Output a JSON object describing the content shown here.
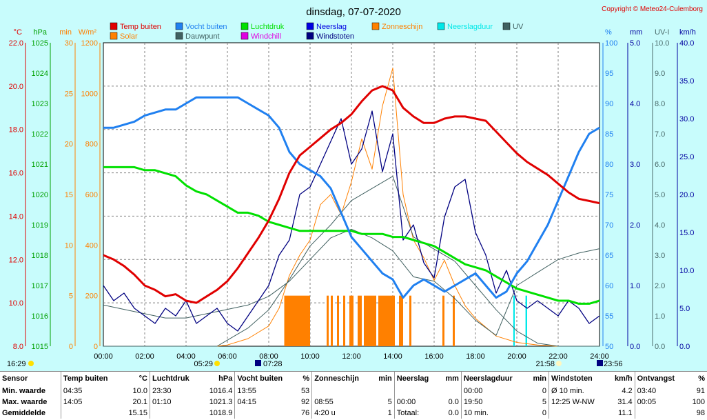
{
  "chart_data": {
    "type": "line",
    "title": "dinsdag, 07-07-2020",
    "copyright": "Copyright © Meteo24-Culemborg",
    "x_ticks": [
      "00:00",
      "02:00",
      "04:00",
      "06:00",
      "08:00",
      "10:00",
      "12:00",
      "14:00",
      "16:00",
      "18:00",
      "20:00",
      "22:00",
      "24:00"
    ],
    "left_axes": [
      {
        "unit": "°C",
        "color": "#e00000",
        "ticks": [
          "22.0",
          "20.0",
          "18.0",
          "16.0",
          "14.0",
          "12.0",
          "10.0",
          "8.0"
        ]
      },
      {
        "unit": "hPa",
        "color": "#00a000",
        "ticks": [
          "1025",
          "1024",
          "1023",
          "1022",
          "1021",
          "1020",
          "1019",
          "1018",
          "1017",
          "1016",
          "1015"
        ]
      },
      {
        "unit": "min",
        "color": "#ff8000",
        "ticks": [
          "30",
          "25",
          "20",
          "15",
          "10",
          "5",
          "0"
        ]
      },
      {
        "unit": "W/m²",
        "color": "#ff8000",
        "ticks": [
          "1200",
          "1000",
          "800",
          "600",
          "400",
          "200",
          "0"
        ]
      }
    ],
    "right_axes": [
      {
        "unit": "%",
        "color": "#2080f0",
        "ticks": [
          "100",
          "95",
          "90",
          "85",
          "80",
          "75",
          "70",
          "65",
          "60",
          "55",
          "50"
        ]
      },
      {
        "unit": "mm",
        "color": "#0000a0",
        "ticks": [
          "5.0",
          "4.0",
          "3.0",
          "2.0",
          "1.0",
          "0.0"
        ]
      },
      {
        "unit": "UV-I",
        "color": "#4a6a6a",
        "ticks": [
          "10.0",
          "9.0",
          "8.0",
          "7.0",
          "6.0",
          "5.0",
          "4.0",
          "3.0",
          "2.0",
          "1.0",
          "0.0"
        ]
      },
      {
        "unit": "km/h",
        "color": "#0000a0",
        "ticks": [
          "40.0",
          "35.0",
          "30.0",
          "25.0",
          "20.0",
          "15.0",
          "10.0",
          "5.0",
          "0.0"
        ]
      }
    ],
    "legend": [
      {
        "name": "Temp buiten",
        "color": "#e00000"
      },
      {
        "name": "Vocht buiten",
        "color": "#2080f0"
      },
      {
        "name": "Luchtdruk",
        "color": "#00e000"
      },
      {
        "name": "Neerslag",
        "color": "#0000e0"
      },
      {
        "name": "Zonneschijn",
        "color": "#ff8000"
      },
      {
        "name": "Neerslagduur",
        "color": "#00e8e8"
      },
      {
        "name": "UV",
        "color": "#406060"
      },
      {
        "name": "Solar",
        "color": "#ff8000"
      },
      {
        "name": "Dauwpunt",
        "color": "#406060"
      },
      {
        "name": "Windchill",
        "color": "#e000e0"
      },
      {
        "name": "Windstoten",
        "color": "#000080"
      }
    ],
    "sun_labels": {
      "left": "16:29",
      "sunrise": "05:29",
      "civil_dawn": "07:28",
      "sunset": "21:58",
      "civil_dusk": "23:56"
    },
    "series": [
      {
        "name": "Temp buiten",
        "unit": "°C",
        "color": "#e00000",
        "x": [
          0,
          0.5,
          1,
          1.5,
          2,
          2.5,
          3,
          3.5,
          4,
          4.5,
          5,
          5.5,
          6,
          6.5,
          7,
          7.5,
          8,
          8.5,
          9,
          9.5,
          10,
          10.5,
          11,
          11.5,
          12,
          12.5,
          13,
          13.5,
          14,
          14.5,
          15,
          15.5,
          16,
          16.5,
          17,
          17.5,
          18,
          18.5,
          19,
          19.5,
          20,
          20.5,
          21,
          21.5,
          22,
          22.5,
          23,
          23.5,
          24
        ],
        "values": [
          12.2,
          12.0,
          11.7,
          11.3,
          10.8,
          10.6,
          10.3,
          10.4,
          10.1,
          10.0,
          10.3,
          10.6,
          11.0,
          11.6,
          12.3,
          13.0,
          13.8,
          14.8,
          16.0,
          16.8,
          17.2,
          17.6,
          18.0,
          18.3,
          18.7,
          19.3,
          19.8,
          20.0,
          19.8,
          19.0,
          18.6,
          18.3,
          18.3,
          18.5,
          18.6,
          18.6,
          18.5,
          18.4,
          17.9,
          17.4,
          16.9,
          16.5,
          16.2,
          15.9,
          15.5,
          15.1,
          14.8,
          14.7,
          14.6
        ]
      },
      {
        "name": "Vocht buiten",
        "unit": "%",
        "color": "#2080f0",
        "x": [
          0,
          0.5,
          1,
          1.5,
          2,
          2.5,
          3,
          3.5,
          4,
          4.5,
          5,
          5.5,
          6,
          6.5,
          7,
          7.5,
          8,
          8.5,
          9,
          9.5,
          10,
          10.5,
          11,
          11.5,
          12,
          12.5,
          13,
          13.5,
          14,
          14.5,
          15,
          15.5,
          16,
          16.5,
          17,
          17.5,
          18,
          18.5,
          19,
          19.5,
          20,
          20.5,
          21,
          21.5,
          22,
          22.5,
          23,
          23.5,
          24
        ],
        "values": [
          86,
          86,
          86.5,
          87,
          88,
          88.5,
          89,
          89,
          90,
          91,
          91,
          91,
          91,
          91,
          90,
          89,
          88,
          86,
          82,
          80,
          79,
          78,
          76,
          72,
          68,
          66,
          64,
          62,
          61,
          58,
          60,
          61,
          60,
          59,
          60,
          61,
          62,
          60,
          58,
          59,
          62,
          64,
          67,
          70,
          74,
          78,
          82,
          85,
          86
        ]
      },
      {
        "name": "Luchtdruk",
        "unit": "hPa",
        "color": "#00e000",
        "x": [
          0,
          0.5,
          1,
          1.5,
          2,
          2.5,
          3,
          3.5,
          4,
          4.5,
          5,
          5.5,
          6,
          6.5,
          7,
          7.5,
          8,
          8.5,
          9,
          9.5,
          10,
          10.5,
          11,
          11.5,
          12,
          12.5,
          13,
          13.5,
          14,
          14.5,
          15,
          15.5,
          16,
          16.5,
          17,
          17.5,
          18,
          18.5,
          19,
          19.5,
          20,
          20.5,
          21,
          21.5,
          22,
          22.5,
          23,
          23.5,
          24
        ],
        "values": [
          1020.9,
          1020.9,
          1020.9,
          1020.9,
          1020.8,
          1020.8,
          1020.7,
          1020.6,
          1020.3,
          1020.1,
          1020.0,
          1019.8,
          1019.6,
          1019.4,
          1019.4,
          1019.3,
          1019.1,
          1019.0,
          1018.9,
          1018.8,
          1018.8,
          1018.8,
          1018.8,
          1018.8,
          1018.8,
          1018.7,
          1018.7,
          1018.7,
          1018.6,
          1018.6,
          1018.5,
          1018.4,
          1018.3,
          1018.1,
          1017.9,
          1017.7,
          1017.6,
          1017.5,
          1017.3,
          1017.1,
          1016.9,
          1016.8,
          1016.7,
          1016.6,
          1016.5,
          1016.5,
          1016.4,
          1016.4,
          1016.5
        ]
      },
      {
        "name": "Dauwpunt",
        "unit": "°C",
        "color": "#406060",
        "x": [
          0,
          1,
          2,
          3,
          4,
          5,
          6,
          7,
          8,
          9,
          10,
          11,
          12,
          13,
          14,
          15,
          16,
          17,
          18,
          19,
          20,
          21,
          22,
          23,
          24
        ],
        "values": [
          9.9,
          9.7,
          9.5,
          9.3,
          9.3,
          9.5,
          9.7,
          9.9,
          10.3,
          11.0,
          12.0,
          13.0,
          13.4,
          13.0,
          12.4,
          11.2,
          11.0,
          10.2,
          9.2,
          8.5,
          10.8,
          11.4,
          12.0,
          12.3,
          12.5
        ]
      },
      {
        "name": "Solar",
        "unit": "W/m²",
        "color": "#ff8000",
        "x": [
          0,
          5.5,
          6,
          7,
          8,
          8.5,
          9,
          9.5,
          10,
          10.5,
          11,
          11.5,
          12,
          12.5,
          13,
          13.5,
          14,
          14.5,
          15,
          15.5,
          16,
          16.5,
          17,
          17.5,
          18,
          19,
          20,
          21,
          21.9,
          24
        ],
        "values": [
          0,
          0,
          5,
          30,
          80,
          150,
          280,
          360,
          420,
          560,
          600,
          520,
          650,
          820,
          700,
          950,
          1100,
          600,
          420,
          350,
          260,
          340,
          240,
          160,
          110,
          40,
          15,
          5,
          0,
          0
        ]
      },
      {
        "name": "Windstoten",
        "unit": "km/h",
        "color": "#000080",
        "x": [
          0,
          0.5,
          1,
          1.5,
          2,
          2.5,
          3,
          3.5,
          4,
          4.5,
          5,
          5.5,
          6,
          6.5,
          7,
          7.5,
          8,
          8.5,
          9,
          9.5,
          10,
          10.5,
          11,
          11.5,
          12,
          12.5,
          13,
          13.5,
          14,
          14.5,
          15,
          15.5,
          16,
          16.5,
          17,
          17.5,
          18,
          18.5,
          19,
          19.5,
          20,
          20.5,
          21,
          21.5,
          22,
          22.5,
          23,
          23.5,
          24
        ],
        "values": [
          8,
          6,
          7,
          5,
          4,
          3,
          5,
          4,
          6,
          3,
          4,
          5,
          3,
          2,
          4,
          6,
          8,
          12,
          14,
          20,
          21,
          24,
          27,
          30,
          24,
          26,
          31,
          23,
          28,
          14,
          16,
          11,
          9,
          17,
          21,
          22,
          15,
          12,
          7,
          10,
          6,
          5,
          6,
          5,
          4,
          6,
          5,
          3,
          4
        ]
      },
      {
        "name": "UV",
        "unit": "UV-I",
        "color": "#406060",
        "x": [
          0,
          5.5,
          6,
          7,
          8,
          9,
          10,
          11,
          12,
          13,
          14,
          15,
          16,
          17,
          18,
          19,
          20,
          21,
          22,
          23,
          24
        ],
        "values": [
          0,
          0,
          0.2,
          0.6,
          1.2,
          2.2,
          3.3,
          4.0,
          4.8,
          5.2,
          5.6,
          3.6,
          3.2,
          2.8,
          2.0,
          1.2,
          0.5,
          0.1,
          0,
          0,
          0
        ]
      }
    ],
    "zonneschijn_bars": {
      "unit": "min",
      "color": "#ff8000",
      "intervals": [
        [
          8.75,
          9.1
        ],
        [
          9.1,
          10.0
        ],
        [
          10.8,
          10.9
        ],
        [
          11.0,
          11.1
        ],
        [
          11.3,
          11.4
        ],
        [
          11.6,
          11.7
        ],
        [
          11.9,
          12.1
        ],
        [
          12.3,
          12.5
        ],
        [
          12.6,
          13.2
        ],
        [
          13.3,
          14.1
        ],
        [
          14.3,
          14.5
        ],
        [
          14.8,
          14.9
        ],
        [
          16.4,
          16.5
        ],
        [
          16.9,
          17.0
        ]
      ]
    },
    "neerslagduur_bars": {
      "unit": "min",
      "color": "#00e8e8",
      "intervals": [
        [
          19.83,
          19.9
        ],
        [
          20.42,
          20.5
        ]
      ]
    }
  },
  "stats": {
    "headers": [
      {
        "name": "Sensor",
        "unit": ""
      },
      {
        "name": "Temp buiten",
        "unit": "°C"
      },
      {
        "name": "Luchtdruk",
        "unit": "hPa"
      },
      {
        "name": "Vocht buiten",
        "unit": "%"
      },
      {
        "name": "Zonneschijn",
        "unit": "min"
      },
      {
        "name": "Neerslag",
        "unit": "mm"
      },
      {
        "name": "Neerslagduur",
        "unit": "min"
      },
      {
        "name": "Windstoten",
        "unit": "km/h"
      },
      {
        "name": "Ontvangst",
        "unit": "%"
      }
    ],
    "rows": [
      {
        "label": "Min. waarde",
        "cells": [
          [
            "04:35",
            "10.0"
          ],
          [
            "23:30",
            "1016.4"
          ],
          [
            "13:55",
            "53"
          ],
          [
            "",
            ""
          ],
          [
            "",
            ""
          ],
          [
            "00:00",
            "0"
          ],
          [
            "Ø 10 min.",
            "4.2"
          ],
          [
            "03:40",
            "91"
          ]
        ]
      },
      {
        "label": "Max. waarde",
        "cells": [
          [
            "14:05",
            "20.1"
          ],
          [
            "01:10",
            "1021.3"
          ],
          [
            "04:15",
            "92"
          ],
          [
            "08:55",
            "5"
          ],
          [
            "00:00",
            "0.0"
          ],
          [
            "19:50",
            "5"
          ],
          [
            "12:25  W-NW",
            "31.4"
          ],
          [
            "00:05",
            "100"
          ]
        ]
      },
      {
        "label": "Gemiddelde",
        "cells": [
          [
            "",
            "15.15"
          ],
          [
            "",
            "1018.9"
          ],
          [
            "",
            "76"
          ],
          [
            "4:20 u",
            "1"
          ],
          [
            "Totaal:",
            "0.0"
          ],
          [
            "10 min.",
            "0"
          ],
          [
            "",
            "11.1"
          ],
          [
            "",
            "98"
          ]
        ]
      }
    ]
  }
}
